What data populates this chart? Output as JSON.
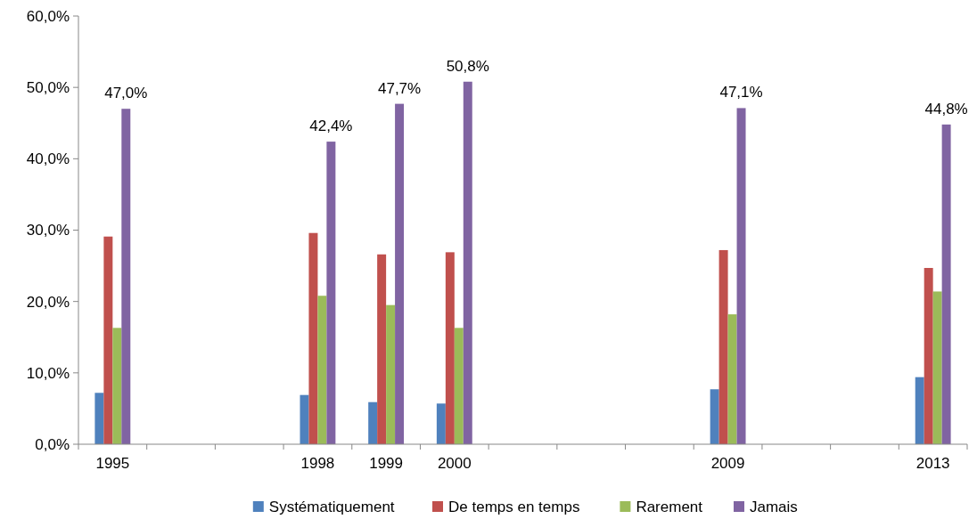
{
  "chart_data": {
    "type": "bar",
    "categories": [
      "1995",
      null,
      null,
      "1998",
      "1999",
      "2000",
      null,
      null,
      null,
      "2009",
      null,
      null,
      "2013"
    ],
    "series": [
      {
        "name": "Systématiquement",
        "color": "#4f81bd",
        "values": [
          7.2,
          null,
          null,
          6.9,
          5.9,
          5.7,
          null,
          null,
          null,
          7.7,
          null,
          null,
          9.4
        ]
      },
      {
        "name": "De temps en temps",
        "color": "#c0504d",
        "values": [
          29.1,
          null,
          null,
          29.6,
          26.6,
          26.9,
          null,
          null,
          null,
          27.2,
          null,
          null,
          24.7
        ]
      },
      {
        "name": "Rarement",
        "color": "#9bbb59",
        "values": [
          16.3,
          null,
          null,
          20.8,
          19.5,
          16.3,
          null,
          null,
          null,
          18.2,
          null,
          null,
          21.4
        ]
      },
      {
        "name": "Jamais",
        "color": "#8064a2",
        "values": [
          47.0,
          null,
          null,
          42.4,
          47.7,
          50.8,
          null,
          null,
          null,
          47.1,
          null,
          null,
          44.8
        ],
        "value_labels": [
          "47,0%",
          null,
          null,
          "42,4%",
          "47,7%",
          "50,8%",
          null,
          null,
          null,
          "47,1%",
          null,
          null,
          "44,8%"
        ]
      }
    ],
    "ylim": [
      0,
      60
    ],
    "yticks": [
      {
        "value": 0,
        "label": "0,0%"
      },
      {
        "value": 10,
        "label": "10,0%"
      },
      {
        "value": 20,
        "label": "20,0%"
      },
      {
        "value": 30,
        "label": "30,0%"
      },
      {
        "value": 40,
        "label": "40,0%"
      },
      {
        "value": 50,
        "label": "50,0%"
      },
      {
        "value": 60,
        "label": "60,0%"
      }
    ],
    "grid": false,
    "legend": "bottom"
  }
}
